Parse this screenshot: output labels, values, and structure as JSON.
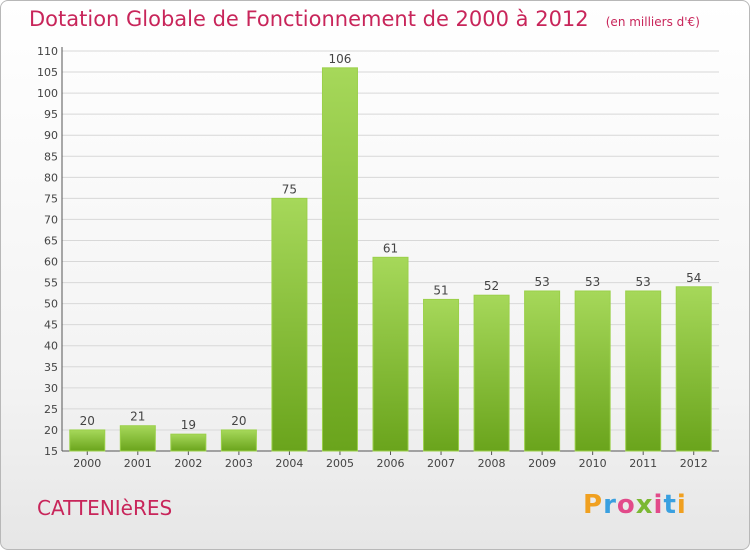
{
  "header": {
    "title": "Dotation Globale de Fonctionnement de 2000 à 2012",
    "subtitle": "(en milliers d'€)"
  },
  "footer": {
    "commune": "CATTENIèRES",
    "logo_letters": [
      "P",
      "r",
      "o",
      "x",
      "i",
      "t",
      "i"
    ],
    "logo_colors": [
      "#f0a020",
      "#3aa0e0",
      "#e24a8a",
      "#7bb833",
      "#e24a8a",
      "#3aa0e0",
      "#f0a020"
    ]
  },
  "colors": {
    "accent": "#c8255a",
    "bar_light": "#a6d85a",
    "bar_dark": "#6aa41c",
    "grid": "#d8d8d8",
    "axis_text": "#444444"
  },
  "chart_data": {
    "type": "bar",
    "title": "Dotation Globale de Fonctionnement de 2000 à 2012",
    "subtitle": "(en milliers d'€)",
    "categories": [
      "2000",
      "2001",
      "2002",
      "2003",
      "2004",
      "2005",
      "2006",
      "2007",
      "2008",
      "2009",
      "2010",
      "2011",
      "2012"
    ],
    "values": [
      20,
      21,
      19,
      20,
      75,
      106,
      61,
      51,
      52,
      53,
      53,
      53,
      54
    ],
    "ylim": [
      15,
      110
    ],
    "yticks": [
      15,
      20,
      25,
      30,
      35,
      40,
      45,
      50,
      55,
      60,
      65,
      70,
      75,
      80,
      85,
      90,
      95,
      100,
      105,
      110
    ],
    "grid": true,
    "legend": "none"
  }
}
